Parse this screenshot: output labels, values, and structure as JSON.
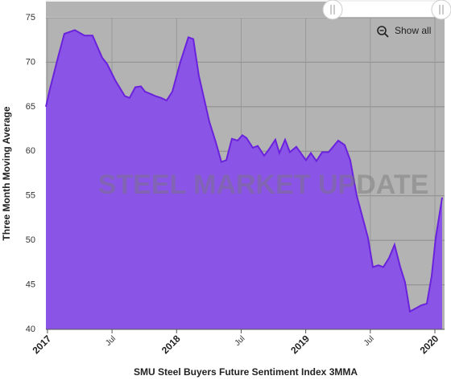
{
  "chart_data": {
    "type": "area",
    "title": "SMU Steel Buyers Future Sentiment Index 3MMA",
    "y_axis_label": "Three Month Moving Average",
    "watermark": "STEEL MARKET UPDATE",
    "reset_button": "Show all",
    "x": [
      2016.988,
      2017.019,
      2017.081,
      2017.131,
      2017.212,
      2017.287,
      2017.349,
      2017.424,
      2017.462,
      2017.524,
      2017.599,
      2017.636,
      2017.68,
      2017.724,
      2017.755,
      2017.805,
      2017.836,
      2017.88,
      2017.923,
      2017.967,
      2018.029,
      2018.091,
      2018.129,
      2018.172,
      2018.254,
      2018.304,
      2018.347,
      2018.385,
      2018.428,
      2018.472,
      2018.509,
      2018.541,
      2018.59,
      2018.628,
      2018.678,
      2018.715,
      2018.765,
      2018.796,
      2018.84,
      2018.877,
      2018.927,
      2019.002,
      2019.04,
      2019.083,
      2019.127,
      2019.177,
      2019.252,
      2019.302,
      2019.345,
      2019.395,
      2019.482,
      2019.52,
      2019.563,
      2019.601,
      2019.645,
      2019.688,
      2019.732,
      2019.769,
      2019.807,
      2019.844,
      2019.894,
      2019.938,
      2019.975,
      2020.006,
      2020.056
    ],
    "series": [
      {
        "color": "#6a22dc",
        "fill": "#8a55e6",
        "values": [
          65,
          67,
          70.5,
          73.2,
          73.6,
          73,
          73,
          70.5,
          69.8,
          68,
          66.2,
          66,
          67.2,
          67.3,
          66.7,
          66.4,
          66.2,
          66,
          65.7,
          66.7,
          70,
          72.8,
          72.6,
          68.5,
          63.3,
          61,
          58.8,
          59,
          61.4,
          61.2,
          61.8,
          61.5,
          60.4,
          60.6,
          59.5,
          60.2,
          61.3,
          59.8,
          61.3,
          59.9,
          60.5,
          59,
          59.8,
          58.9,
          59.9,
          59.9,
          61.2,
          60.7,
          59,
          55,
          50.3,
          47,
          47.2,
          47,
          48,
          49.5,
          47,
          45.3,
          42,
          42.3,
          42.7,
          42.9,
          46,
          50.2,
          54.8
        ]
      }
    ],
    "xlim": [
      2016.988,
      2020.075
    ],
    "xticks": [
      2017,
      {
        "value": 2017.5,
        "label": "Jul"
      },
      2018,
      {
        "value": 2018.5,
        "label": "Jul"
      },
      2019,
      {
        "value": 2019.5,
        "label": "Jul"
      },
      2020
    ],
    "ylim": [
      40,
      75
    ],
    "yticks": [
      40,
      45,
      50,
      55,
      60,
      65,
      70,
      75
    ],
    "grid": true
  }
}
